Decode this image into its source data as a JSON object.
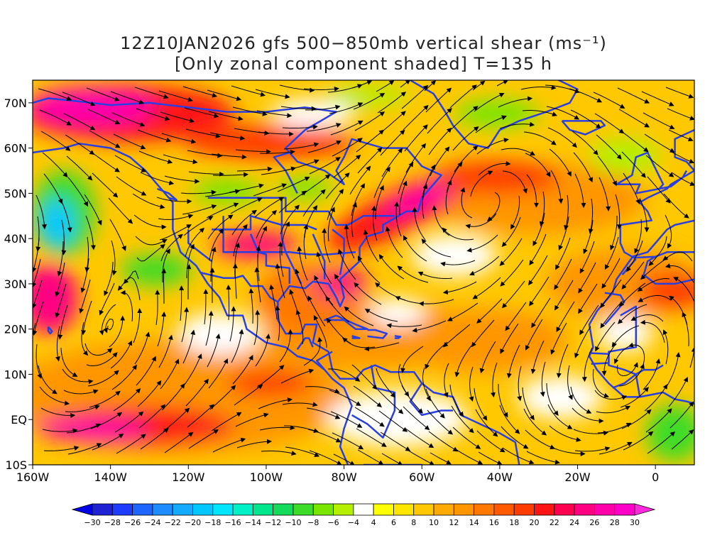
{
  "title": {
    "line1": "12Z10JAN2026 gfs 500−850mb vertical shear (ms⁻¹)",
    "line2": "[Only zonal component shaded] T=135 h"
  },
  "map": {
    "lon_range": [
      -160,
      10
    ],
    "lat_range": [
      -10,
      75
    ],
    "x_tick_labels": [
      "160W",
      "140W",
      "120W",
      "100W",
      "80W",
      "60W",
      "40W",
      "20W",
      "0"
    ],
    "x_tick_lons": [
      -160,
      -140,
      -120,
      -100,
      -80,
      -60,
      -40,
      -20,
      0
    ],
    "y_tick_labels": [
      "10S",
      "EQ",
      "10N",
      "20N",
      "30N",
      "40N",
      "50N",
      "60N",
      "70N"
    ],
    "y_tick_lats": [
      -10,
      0,
      10,
      20,
      30,
      40,
      50,
      60,
      70
    ],
    "coastline_color": "#2a3fe0",
    "streamline_color": "#000000"
  },
  "colorbar": {
    "labels": [
      "−30",
      "−28",
      "−26",
      "−24",
      "−22",
      "−20",
      "−18",
      "−16",
      "−14",
      "−12",
      "−10",
      "−8",
      "−6",
      "−4",
      "4",
      "6",
      "8",
      "10",
      "12",
      "14",
      "16",
      "18",
      "20",
      "22",
      "24",
      "26",
      "28",
      "30"
    ],
    "colors": [
      "#1e22d2",
      "#1e3cff",
      "#1e64ff",
      "#1e8cff",
      "#14aaff",
      "#00c8ff",
      "#00e6ff",
      "#00f0c8",
      "#00e68c",
      "#14dc5a",
      "#3cdc28",
      "#78e600",
      "#b4f000",
      "#ffffff",
      "#ffff00",
      "#ffe600",
      "#ffc800",
      "#ffaa00",
      "#ff9600",
      "#ff7800",
      "#ff5a00",
      "#ff3c00",
      "#ff1414",
      "#ff0050",
      "#ff0082",
      "#ff00aa",
      "#ff00c8"
    ],
    "left_color": "#0000e6",
    "right_color": "#ff28dc"
  }
}
